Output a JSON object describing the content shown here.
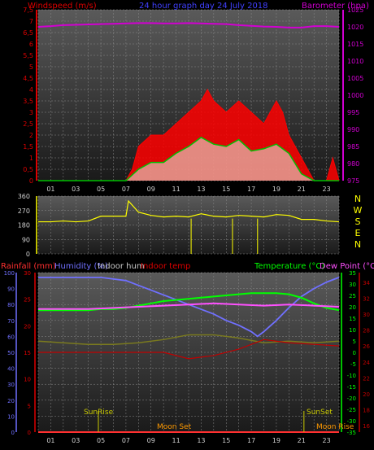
{
  "header": {
    "wind_label": "Windspeed (m/s)",
    "title": "24 hour graph day   24 July 2018",
    "baro_label": "Barometer (hpa)"
  },
  "colors": {
    "bg": "#000000",
    "panel_top": "#5a5a5a",
    "panel_bottom": "#1a1a1a",
    "grid": "#8a8a8a",
    "wind_avg": "#00c000",
    "wind_gust": "#ff0000",
    "wind_light": "#e6f5e6",
    "barometer": "#d200d2",
    "wind_dir": "#ffff00",
    "rainfall": "#ff3030",
    "humidity": "#7070ff",
    "indoor_hum": "#7a7a1e",
    "indoor_temp": "#c00000",
    "temperature": "#00ff00",
    "dewpoint": "#ff50ff",
    "title": "#4040ff",
    "axis_text": "#dd0000",
    "cardinal": "#ffff00",
    "sun": "#c8c800",
    "moon": "#ff9a00"
  },
  "hour_ticks": [
    "01",
    "03",
    "05",
    "07",
    "09",
    "11",
    "13",
    "15",
    "17",
    "19",
    "21",
    "23"
  ],
  "wind_dir_panel": {
    "y_ticks": [
      "360",
      "270",
      "180",
      "90",
      "0"
    ],
    "cardinals": [
      "N",
      "W",
      "S",
      "E",
      "N"
    ]
  },
  "bottom_panel": {
    "legend": {
      "rainfall": "Rainfall (mm)",
      "humidity": "Humidity (%)",
      "indoor_hum": "Indoor hum",
      "indoor_temp": "Indoor temp",
      "temperature": "Temperature (°C)",
      "dewpoint": "Dew Point (°C)"
    },
    "hum_ticks": [
      "100",
      "90",
      "80",
      "70",
      "60",
      "50",
      "40",
      "30",
      "20",
      "10",
      "0"
    ],
    "rain_ticks": [
      "30",
      "25",
      "20",
      "15",
      "10",
      "5",
      "0"
    ],
    "temp_ticks": [
      "35",
      "30",
      "25",
      "20",
      "15",
      "10",
      "5",
      "0",
      "-5",
      "-10",
      "-15",
      "-20",
      "-25",
      "-30",
      "-35"
    ],
    "indoor_ticks": [
      "34",
      "32",
      "30",
      "28",
      "26",
      "24",
      "22",
      "20",
      "18",
      "16"
    ],
    "sunrise": "SunRise",
    "sunset": "SunSet",
    "moonset": "Moon Set",
    "moonrise": "Moon Rise"
  },
  "chart_data": [
    {
      "type": "line",
      "title": "24 hour graph day   24 July 2018",
      "ylabel": "Windspeed (m/s)",
      "y2label": "Barometer (hpa)",
      "xlim": [
        0,
        24
      ],
      "ylim": [
        0,
        7.5
      ],
      "y_ticks": [
        "7,5",
        "7",
        "6,5",
        "6",
        "5,5",
        "5",
        "4,5",
        "4",
        "3,5",
        "3",
        "2,5",
        "2",
        "1,5",
        "1",
        "0,5",
        "0"
      ],
      "y2lim": [
        975,
        1025
      ],
      "y2_ticks": [
        "1025",
        "1020",
        "1015",
        "1010",
        "1005",
        "1000",
        "995",
        "990",
        "985",
        "980",
        "975"
      ],
      "series": [
        {
          "name": "Barometer (hpa)",
          "axis": "y2",
          "x": [
            0,
            1,
            2,
            3,
            4,
            5,
            6,
            7,
            8,
            9,
            10,
            11,
            12,
            13,
            14,
            15,
            16,
            17,
            18,
            19,
            20,
            21,
            22,
            23,
            24
          ],
          "values": [
            1020,
            1020.2,
            1020.5,
            1020.6,
            1020.7,
            1020.8,
            1020.9,
            1021,
            1021.1,
            1021.1,
            1021,
            1021,
            1021.1,
            1021,
            1020.9,
            1020.8,
            1020.5,
            1020.3,
            1020.1,
            1020,
            1019.8,
            1019.8,
            1020.2,
            1020.2,
            1020
          ]
        },
        {
          "name": "Windspeed (m/s)",
          "x": [
            0,
            7,
            8,
            9,
            10,
            11,
            12,
            13,
            14,
            15,
            16,
            17,
            18,
            19,
            20,
            21,
            22,
            23,
            24
          ],
          "values": [
            0,
            0,
            0.5,
            0.8,
            0.8,
            1.2,
            1.5,
            1.9,
            1.6,
            1.5,
            1.8,
            1.3,
            1.4,
            1.6,
            1.2,
            0.3,
            0,
            0,
            0
          ]
        },
        {
          "name": "Gust",
          "x": [
            0,
            7,
            7.5,
            8,
            9,
            10,
            11,
            12,
            13,
            13.5,
            14,
            15,
            16,
            17,
            18,
            19,
            19.5,
            20,
            21,
            22,
            23,
            23.5,
            24
          ],
          "values": [
            0,
            0,
            0.5,
            1.5,
            2,
            2,
            2.5,
            3,
            3.5,
            4,
            3.5,
            3,
            3.5,
            3,
            2.5,
            3.5,
            3,
            2,
            1,
            0,
            0,
            1,
            0
          ]
        }
      ]
    },
    {
      "type": "line",
      "ylabel": "Wind direction",
      "xlim": [
        0,
        24
      ],
      "ylim": [
        0,
        360
      ],
      "series": [
        {
          "name": "Wind direction",
          "x": [
            0,
            1,
            2,
            3,
            4,
            5,
            6,
            7,
            7.2,
            8,
            9,
            10,
            11,
            12,
            13,
            14,
            15,
            16,
            17,
            18,
            19,
            20,
            21,
            22,
            23,
            24
          ],
          "values": [
            200,
            200,
            205,
            200,
            205,
            235,
            235,
            235,
            330,
            260,
            240,
            230,
            235,
            230,
            250,
            235,
            230,
            240,
            235,
            230,
            245,
            240,
            215,
            215,
            205,
            200
          ]
        }
      ]
    },
    {
      "type": "line",
      "xlim": [
        0,
        24
      ],
      "ylim": [
        0,
        100
      ],
      "y2lim": [
        -35,
        35
      ],
      "series": [
        {
          "name": "Humidity (%)",
          "x": [
            0,
            1,
            2,
            3,
            4,
            5,
            6,
            7,
            8,
            9,
            10,
            11,
            12,
            13,
            14,
            15,
            16,
            17,
            17.5,
            18,
            19,
            20,
            21,
            22,
            23,
            24
          ],
          "values": [
            97,
            97,
            97,
            97,
            97,
            97,
            96,
            95,
            92,
            89,
            86,
            83,
            80,
            77,
            74,
            70,
            67,
            63,
            60,
            63,
            70,
            78,
            85,
            90,
            94,
            97
          ]
        },
        {
          "name": "Temperature (°C)",
          "x": [
            0,
            1,
            2,
            3,
            4,
            5,
            6,
            7,
            8,
            9,
            10,
            11,
            12,
            13,
            14,
            15,
            16,
            17,
            18,
            19,
            20,
            21,
            22,
            23,
            24
          ],
          "values": [
            18.5,
            18.5,
            18.5,
            18.5,
            18.5,
            19,
            19,
            19.5,
            20.5,
            21.5,
            22.5,
            23,
            23.5,
            24,
            24.5,
            25,
            25.5,
            26,
            26,
            26,
            25.5,
            24,
            21.5,
            19.5,
            18.5
          ]
        },
        {
          "name": "Dew Point (°C)",
          "x": [
            0,
            2,
            4,
            6,
            8,
            10,
            12,
            14,
            16,
            18,
            20,
            22,
            24
          ],
          "values": [
            19,
            19,
            19,
            19.5,
            20,
            20.5,
            21,
            21.5,
            21,
            20.5,
            21,
            20.5,
            20
          ]
        },
        {
          "name": "Indoor hum",
          "x": [
            0,
            2,
            4,
            6,
            8,
            10,
            12,
            14,
            16,
            18,
            20,
            22,
            24
          ],
          "values": [
            57,
            56,
            55,
            55,
            56,
            58,
            61,
            61,
            59,
            56,
            57,
            56,
            57
          ]
        },
        {
          "name": "Indoor temp",
          "x": [
            0,
            2,
            4,
            6,
            8,
            10,
            12,
            14,
            16,
            18,
            20,
            22,
            24
          ],
          "values": [
            50,
            50,
            50,
            50,
            50,
            50,
            46,
            48,
            52,
            58,
            56,
            55,
            54
          ]
        },
        {
          "name": "Rainfall (mm)",
          "x": [
            0,
            24
          ],
          "values": [
            0,
            0
          ]
        }
      ]
    }
  ]
}
